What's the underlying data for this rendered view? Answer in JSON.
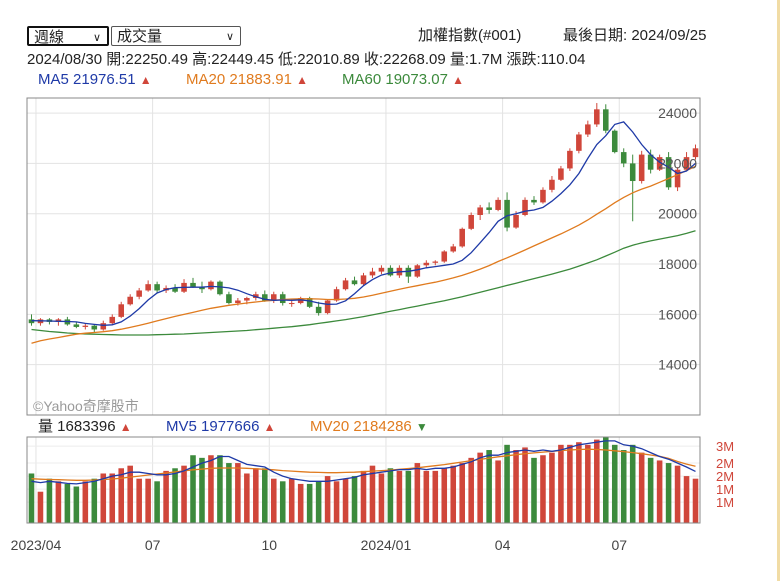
{
  "header": {
    "period_select": "週線",
    "indicator_select": "成交量",
    "index_name": "加權指數(#001)",
    "last_date": "最後日期: 2024/09/25",
    "ohlc_line": "2024/08/30  開:22250.49  高:22449.45  低:22010.89  收:22268.09  量:1.7M  漲跌:110.04"
  },
  "ma_legend": [
    {
      "label": "MA5 21976.51",
      "trend": "▲",
      "color": "#1f3aa7"
    },
    {
      "label": "MA20 21883.91",
      "trend": "▲",
      "color": "#e07b1f"
    },
    {
      "label": "MA60 19073.07",
      "trend": "▲",
      "color": "#3c8a3c"
    }
  ],
  "vol_legend": [
    {
      "label": "量 1683396",
      "trend": "▲",
      "color": "#222222"
    },
    {
      "label": "MV5 1977666",
      "trend": "▲",
      "color": "#1f3aa7"
    },
    {
      "label": "MV20 2184286",
      "trend": "▼",
      "color": "#e07b1f"
    }
  ],
  "watermark": "©Yahoo奇摩股市",
  "chart_data": [
    {
      "type": "candlestick",
      "title": "加權指數(#001) 週線",
      "y_ticks": [
        14000,
        16000,
        18000,
        20000,
        22000,
        24000
      ],
      "ylim": [
        12000,
        24600
      ],
      "x_tick_labels": [
        "2023/04",
        "07",
        "10",
        "2024/01",
        "04",
        "07"
      ],
      "x_tick_index": [
        0,
        13,
        26,
        39,
        52,
        65
      ],
      "colors": {
        "up": "#d0463a",
        "down": "#3c8a3c",
        "ma5": "#1f3aa7",
        "ma20": "#e07b1f",
        "ma60": "#3c8a3c"
      },
      "candles": [
        [
          15800,
          16000,
          15550,
          15650
        ],
        [
          15650,
          15850,
          15550,
          15800
        ],
        [
          15800,
          15850,
          15600,
          15700
        ],
        [
          15700,
          15850,
          15550,
          15800
        ],
        [
          15800,
          15900,
          15550,
          15600
        ],
        [
          15600,
          15700,
          15450,
          15500
        ],
        [
          15500,
          15650,
          15400,
          15550
        ],
        [
          15550,
          15600,
          15300,
          15400
        ],
        [
          15400,
          15750,
          15350,
          15650
        ],
        [
          15650,
          16000,
          15600,
          15900
        ],
        [
          15900,
          16500,
          15850,
          16400
        ],
        [
          16400,
          16800,
          16350,
          16700
        ],
        [
          16700,
          17050,
          16600,
          16950
        ],
        [
          16950,
          17350,
          16900,
          17200
        ],
        [
          17200,
          17300,
          16850,
          16950
        ],
        [
          16950,
          17150,
          16850,
          17050
        ],
        [
          17050,
          17200,
          16850,
          16900
        ],
        [
          16900,
          17400,
          16850,
          17250
        ],
        [
          17250,
          17450,
          17050,
          17100
        ],
        [
          17100,
          17300,
          16850,
          17000
        ],
        [
          17000,
          17350,
          16950,
          17300
        ],
        [
          17300,
          17350,
          16750,
          16800
        ],
        [
          16800,
          16900,
          16400,
          16450
        ],
        [
          16450,
          16650,
          16350,
          16550
        ],
        [
          16550,
          16700,
          16400,
          16650
        ],
        [
          16650,
          16900,
          16550,
          16800
        ],
        [
          16800,
          16950,
          16500,
          16550
        ],
        [
          16550,
          16900,
          16450,
          16800
        ],
        [
          16800,
          16900,
          16350,
          16450
        ],
        [
          16450,
          16600,
          16300,
          16450
        ],
        [
          16450,
          16700,
          16400,
          16650
        ],
        [
          16650,
          16700,
          16250,
          16300
        ],
        [
          16300,
          16500,
          15950,
          16050
        ],
        [
          16050,
          16600,
          16000,
          16550
        ],
        [
          16550,
          17100,
          16500,
          17000
        ],
        [
          17000,
          17450,
          16950,
          17350
        ],
        [
          17350,
          17500,
          17150,
          17200
        ],
        [
          17200,
          17650,
          17150,
          17550
        ],
        [
          17550,
          17850,
          17450,
          17700
        ],
        [
          17700,
          17950,
          17600,
          17850
        ],
        [
          17850,
          17950,
          17500,
          17550
        ],
        [
          17550,
          17950,
          17450,
          17850
        ],
        [
          17850,
          17950,
          17250,
          17500
        ],
        [
          17500,
          18000,
          17450,
          17950
        ],
        [
          17950,
          18150,
          17850,
          18050
        ],
        [
          18050,
          18150,
          17950,
          18100
        ],
        [
          18100,
          18550,
          18050,
          18500
        ],
        [
          18500,
          18800,
          18450,
          18700
        ],
        [
          18700,
          19450,
          18650,
          19400
        ],
        [
          19400,
          20050,
          19350,
          19950
        ],
        [
          19950,
          20350,
          19750,
          20250
        ],
        [
          20250,
          20450,
          20000,
          20150
        ],
        [
          20150,
          20650,
          20100,
          20550
        ],
        [
          20550,
          20850,
          19300,
          19450
        ],
        [
          19450,
          20100,
          19400,
          19950
        ],
        [
          19950,
          20650,
          19900,
          20550
        ],
        [
          20550,
          20700,
          20350,
          20450
        ],
        [
          20450,
          21050,
          20400,
          20950
        ],
        [
          20950,
          21500,
          20850,
          21350
        ],
        [
          21350,
          21900,
          21300,
          21800
        ],
        [
          21800,
          22600,
          21700,
          22500
        ],
        [
          22500,
          23250,
          22400,
          23150
        ],
        [
          23150,
          23700,
          23050,
          23550
        ],
        [
          23550,
          24400,
          23450,
          24150
        ],
        [
          24150,
          24350,
          23200,
          23300
        ],
        [
          23300,
          23350,
          22400,
          22450
        ],
        [
          22450,
          22600,
          21850,
          22000
        ],
        [
          22000,
          22350,
          19700,
          21300
        ],
        [
          21300,
          22500,
          21200,
          22350
        ],
        [
          22350,
          22550,
          21600,
          21750
        ],
        [
          21750,
          22350,
          21700,
          22250
        ],
        [
          22250,
          22450,
          20950,
          21050
        ],
        [
          21050,
          21850,
          20900,
          21750
        ],
        [
          21750,
          22450,
          21700,
          22250
        ],
        [
          22250,
          22750,
          22150,
          22600
        ]
      ],
      "ma5": [
        15750,
        15745,
        15735,
        15725,
        15715,
        15700,
        15640,
        15600,
        15565,
        15585,
        15700,
        15930,
        16230,
        16570,
        16850,
        16990,
        17060,
        17070,
        17080,
        17080,
        17110,
        17090,
        17050,
        16960,
        16820,
        16700,
        16600,
        16560,
        16570,
        16560,
        16580,
        16530,
        16450,
        16400,
        16410,
        16540,
        16820,
        17140,
        17380,
        17560,
        17650,
        17690,
        17710,
        17770,
        17850,
        17900,
        17950,
        18000,
        18150,
        18450,
        18850,
        19250,
        19700,
        19920,
        20000,
        20100,
        20150,
        20250,
        20500,
        20800,
        21150,
        21600,
        22200,
        22750,
        23100,
        23550,
        23650,
        23250,
        22750,
        22350,
        22050,
        21850,
        21600,
        21700,
        22000
      ],
      "ma20": [
        14850,
        14950,
        15020,
        15080,
        15150,
        15210,
        15250,
        15280,
        15310,
        15350,
        15410,
        15480,
        15560,
        15650,
        15740,
        15830,
        15920,
        16000,
        16080,
        16160,
        16240,
        16300,
        16360,
        16410,
        16450,
        16490,
        16530,
        16560,
        16590,
        16610,
        16620,
        16620,
        16610,
        16590,
        16590,
        16610,
        16640,
        16690,
        16760,
        16840,
        16920,
        17000,
        17070,
        17140,
        17210,
        17280,
        17360,
        17450,
        17550,
        17670,
        17800,
        17940,
        18100,
        18250,
        18400,
        18560,
        18720,
        18880,
        19040,
        19200,
        19370,
        19550,
        19750,
        19980,
        20200,
        20440,
        20650,
        20830,
        20980,
        21100,
        21250,
        21400,
        21550,
        21720,
        21880
      ],
      "ma60": [
        15400,
        15360,
        15320,
        15290,
        15260,
        15240,
        15220,
        15210,
        15200,
        15190,
        15180,
        15180,
        15180,
        15180,
        15190,
        15200,
        15210,
        15220,
        15240,
        15260,
        15280,
        15300,
        15320,
        15340,
        15360,
        15390,
        15420,
        15450,
        15480,
        15510,
        15550,
        15590,
        15640,
        15690,
        15740,
        15790,
        15850,
        15910,
        15980,
        16050,
        16120,
        16190,
        16260,
        16330,
        16400,
        16470,
        16540,
        16620,
        16700,
        16790,
        16880,
        16970,
        17060,
        17150,
        17240,
        17330,
        17420,
        17510,
        17600,
        17700,
        17800,
        17920,
        18040,
        18170,
        18320,
        18470,
        18630,
        18750,
        18840,
        18920,
        18990,
        19060,
        19130,
        19220,
        19320
      ]
    },
    {
      "type": "bar",
      "title": "成交量",
      "y_ticks": [
        "1M",
        "1M",
        "2M",
        "2M",
        "3M"
      ],
      "ylim": [
        0,
        3300000
      ],
      "volume_k": [
        1900,
        1200,
        1700,
        1600,
        1500,
        1400,
        1600,
        1700,
        1900,
        1900,
        2100,
        2200,
        1700,
        1700,
        1600,
        2000,
        2100,
        2200,
        2600,
        2500,
        2600,
        2600,
        2300,
        2300,
        1900,
        2100,
        2100,
        1700,
        1600,
        1700,
        1500,
        1500,
        1600,
        1800,
        1600,
        1700,
        1800,
        2000,
        2200,
        1900,
        2100,
        2000,
        2000,
        2300,
        2000,
        2000,
        2100,
        2200,
        2300,
        2500,
        2700,
        2800,
        2400,
        3000,
        2800,
        2900,
        2500,
        2600,
        2700,
        3000,
        3000,
        3100,
        3000,
        3200,
        3300,
        3000,
        2800,
        3000,
        2700,
        2500,
        2400,
        2300,
        2200,
        1800,
        1700
      ],
      "mv5_k": [
        1600,
        1550,
        1600,
        1560,
        1520,
        1500,
        1550,
        1600,
        1700,
        1800,
        1850,
        1950,
        1950,
        1900,
        1850,
        1850,
        1900,
        2000,
        2150,
        2300,
        2400,
        2550,
        2550,
        2400,
        2250,
        2200,
        2150,
        1950,
        1800,
        1700,
        1650,
        1600,
        1600,
        1600,
        1650,
        1700,
        1750,
        1850,
        1900,
        1950,
        2000,
        2050,
        2050,
        2100,
        2050,
        2100,
        2100,
        2150,
        2250,
        2350,
        2500,
        2600,
        2600,
        2700,
        2750,
        2800,
        2750,
        2800,
        2750,
        2800,
        2900,
        3000,
        3050,
        3100,
        3150,
        3150,
        3000,
        2950,
        2850,
        2700,
        2550,
        2450,
        2300,
        2150,
        1980
      ],
      "mv20_k": [
        1700,
        1680,
        1670,
        1660,
        1650,
        1640,
        1640,
        1650,
        1670,
        1690,
        1720,
        1760,
        1800,
        1840,
        1880,
        1920,
        1960,
        2000,
        2040,
        2070,
        2100,
        2110,
        2110,
        2110,
        2100,
        2080,
        2060,
        2040,
        2010,
        1990,
        1970,
        1950,
        1940,
        1930,
        1930,
        1940,
        1950,
        1970,
        1990,
        2010,
        2030,
        2060,
        2090,
        2120,
        2160,
        2200,
        2240,
        2290,
        2340,
        2390,
        2440,
        2490,
        2540,
        2580,
        2620,
        2660,
        2690,
        2720,
        2750,
        2780,
        2800,
        2820,
        2830,
        2820,
        2800,
        2770,
        2740,
        2700,
        2660,
        2610,
        2560,
        2480,
        2360,
        2260,
        2180
      ]
    }
  ]
}
